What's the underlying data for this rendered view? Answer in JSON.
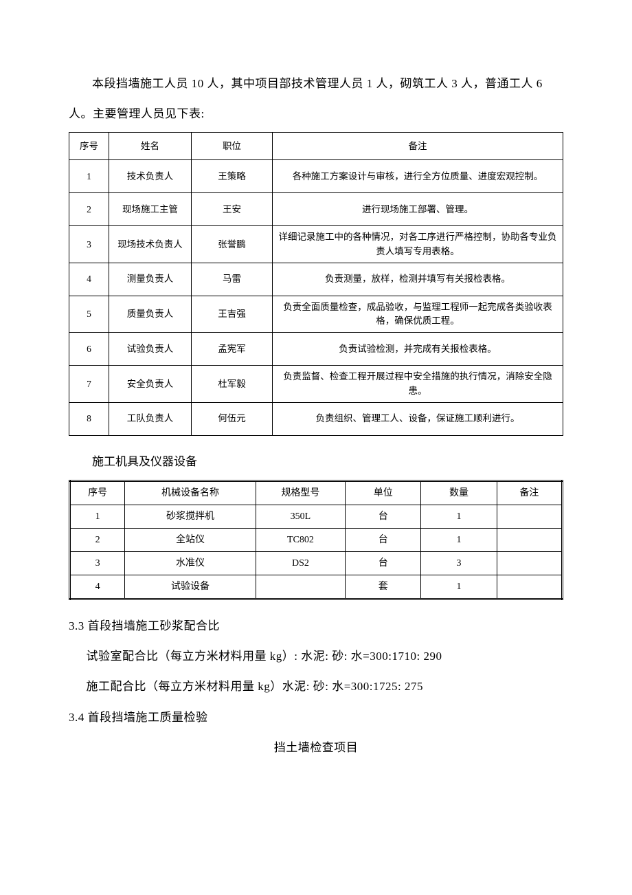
{
  "intro_text": "本段挡墙施工人员 10 人，其中项目部技术管理人员 1 人，砌筑工人 3 人，普通工人 6 人。主要管理人员见下表:",
  "table1": {
    "headers": [
      "序号",
      "姓名",
      "职位",
      "备注"
    ],
    "rows": [
      [
        "1",
        "技术负责人",
        "王策略",
        "各种施工方案设计与审核，进行全方位质量、进度宏观控制。"
      ],
      [
        "2",
        "现场施工主管",
        "王安",
        "进行现场施工部署、管理。"
      ],
      [
        "3",
        "现场技术负责人",
        "张誉鹏",
        "详细记录施工中的各种情况，对各工序进行严格控制，协助各专业负责人填写专用表格。"
      ],
      [
        "4",
        "测量负责人",
        "马雷",
        "负责测量，放样，检测并填写有关报检表格。"
      ],
      [
        "5",
        "质量负责人",
        "王吉强",
        "负责全面质量检查，成品验收，与监理工程师一起完成各类验收表格，确保优质工程。"
      ],
      [
        "6",
        "试验负责人",
        "孟宪军",
        "负责试验检测，并完成有关报检表格。"
      ],
      [
        "7",
        "安全负责人",
        "杜军毅",
        "负责监督、检查工程开展过程中安全措施的执行情况，消除安全隐患。"
      ],
      [
        "8",
        "工队负责人",
        "何伍元",
        "负责组织、管理工人、设备，保证施工顺利进行。"
      ]
    ]
  },
  "equip_heading": "施工机具及仪器设备",
  "table2": {
    "headers": [
      "序号",
      "机械设备名称",
      "规格型号",
      "单位",
      "数量",
      "备注"
    ],
    "rows": [
      [
        "1",
        "砂浆搅拌机",
        "350L",
        "台",
        "1",
        ""
      ],
      [
        "2",
        "全站仪",
        "TC802",
        "台",
        "1",
        ""
      ],
      [
        "3",
        "水准仪",
        "DS2",
        "台",
        "3",
        ""
      ],
      [
        "4",
        "试验设备",
        "",
        "套",
        "1",
        ""
      ]
    ]
  },
  "sec33_title": "3.3 首段挡墙施工砂浆配合比",
  "ratio_lab": "试验室配合比（每立方米材料用量 kg）: 水泥: 砂: 水=300:1710: 290",
  "ratio_site": "施工配合比（每立方米材料用量 kg）水泥: 砂: 水=300:1725: 275",
  "sec34_title": "3.4 首段挡墙施工质量检验",
  "check_title": "挡土墙检查项目"
}
